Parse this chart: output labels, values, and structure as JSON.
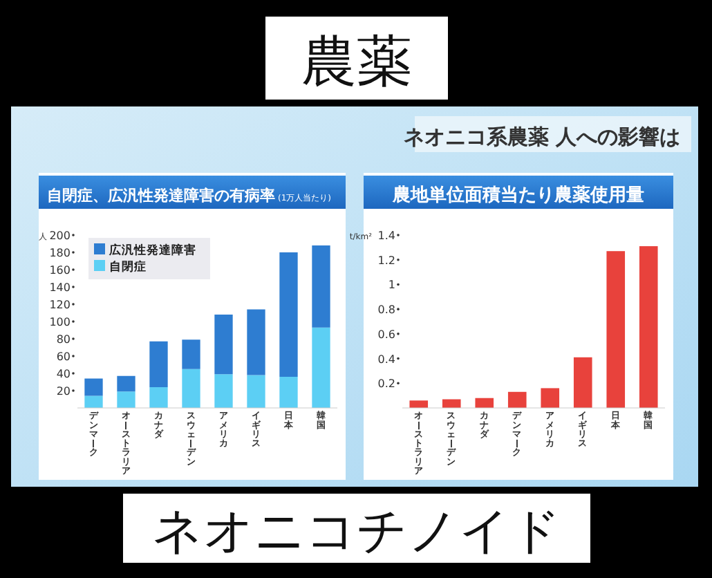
{
  "chart_data": [
    {
      "type": "other",
      "title": "農薬",
      "subtitle": "ネオニコ系農薬 人への影響は",
      "annotations": [
        "ネオニコチノイド"
      ]
    },
    {
      "type": "bar",
      "title": "自閉症、広汎性発達障害の有病率",
      "subtitle": "(1万人当たり)",
      "ylabel": "人",
      "stacked": true,
      "legend": "top left",
      "categories": [
        "デンマーク",
        "オーストラリア",
        "カナダ",
        "スウェーデン",
        "アメリカ",
        "イギリス",
        "日本",
        "韓国"
      ],
      "ylim": [
        0,
        200
      ],
      "yticks": [
        20,
        40,
        60,
        80,
        100,
        120,
        140,
        160,
        180,
        200
      ],
      "series": [
        {
          "name": "自閉症",
          "color": "#5ccff4",
          "values": [
            14,
            19,
            24,
            45,
            39,
            38,
            36,
            93
          ]
        },
        {
          "name": "広汎性発達障害",
          "color": "#2e7dd1",
          "values": [
            20,
            18,
            53,
            34,
            69,
            76,
            144,
            95
          ]
        }
      ]
    },
    {
      "type": "bar",
      "title": "農地単位面積当たり農薬使用量",
      "ylabel": "t/km²",
      "categories": [
        "オーストラリア",
        "スウェーデン",
        "カナダ",
        "デンマーク",
        "アメリカ",
        "イギリス",
        "日本",
        "韓国"
      ],
      "ylim": [
        0,
        1.4
      ],
      "yticks": [
        0.2,
        0.4,
        0.6,
        0.8,
        1,
        1.2,
        1.4
      ],
      "series": [
        {
          "color": "#e8423c",
          "values": [
            0.06,
            0.07,
            0.08,
            0.13,
            0.16,
            0.41,
            1.27,
            1.31
          ]
        }
      ]
    }
  ]
}
